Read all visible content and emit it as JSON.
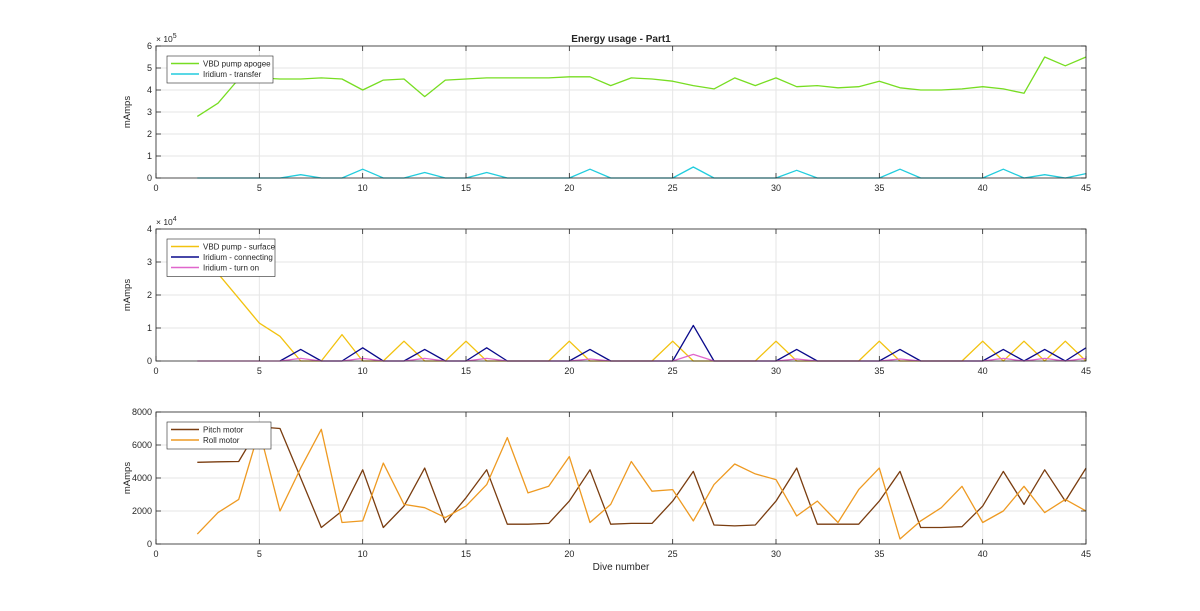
{
  "chart_data": [
    {
      "type": "line",
      "title": "Energy usage - Part1",
      "xlabel": "",
      "ylabel": "mAmps",
      "exponent_label": "× 10^5",
      "exponent_base": "× 10",
      "exponent_power": "5",
      "xlim": [
        0,
        45
      ],
      "ylim": [
        0,
        6
      ],
      "xticks": [
        0,
        5,
        10,
        15,
        20,
        25,
        30,
        35,
        40,
        45
      ],
      "yticks": [
        0,
        1,
        2,
        3,
        4,
        5,
        6
      ],
      "grid": true,
      "legend": "top-left",
      "series": [
        {
          "name": "VBD pump apogee",
          "color": "#77dd22",
          "x": [
            2,
            3,
            4,
            5,
            6,
            7,
            8,
            9,
            10,
            11,
            12,
            13,
            14,
            15,
            16,
            17,
            18,
            19,
            20,
            21,
            22,
            23,
            24,
            25,
            26,
            27,
            28,
            29,
            30,
            31,
            32,
            33,
            34,
            35,
            36,
            37,
            38,
            39,
            40,
            41,
            42,
            43,
            44,
            45
          ],
          "y": [
            2.8,
            3.4,
            4.5,
            4.55,
            4.5,
            4.5,
            4.55,
            4.5,
            4.0,
            4.45,
            4.5,
            3.7,
            4.45,
            4.5,
            4.55,
            4.55,
            4.55,
            4.55,
            4.6,
            4.6,
            4.2,
            4.55,
            4.5,
            4.4,
            4.2,
            4.05,
            4.55,
            4.2,
            4.55,
            4.15,
            4.2,
            4.1,
            4.15,
            4.4,
            4.1,
            4.0,
            4.0,
            4.05,
            4.15,
            4.05,
            3.85,
            5.5,
            5.1,
            5.5
          ]
        },
        {
          "name": "Iridium - transfer",
          "color": "#22ccdd",
          "x": [
            2,
            6,
            7,
            8,
            9,
            10,
            11,
            12,
            13,
            14,
            15,
            16,
            17,
            20,
            21,
            22,
            25,
            26,
            27,
            30,
            31,
            32,
            35,
            36,
            37,
            40,
            41,
            42,
            43,
            44,
            45
          ],
          "y": [
            0,
            0,
            0.15,
            0,
            0,
            0.4,
            0,
            0,
            0.25,
            0,
            0,
            0.25,
            0,
            0,
            0.4,
            0,
            0,
            0.5,
            0,
            0,
            0.35,
            0,
            0,
            0.4,
            0,
            0,
            0.4,
            0,
            0.15,
            0,
            0.2
          ]
        }
      ]
    },
    {
      "type": "line",
      "title": "",
      "xlabel": "",
      "ylabel": "mAmps",
      "exponent_label": "× 10^4",
      "exponent_base": "× 10",
      "exponent_power": "4",
      "xlim": [
        0,
        45
      ],
      "ylim": [
        0,
        4
      ],
      "xticks": [
        0,
        5,
        10,
        15,
        20,
        25,
        30,
        35,
        40,
        45
      ],
      "yticks": [
        0,
        1,
        2,
        3,
        4
      ],
      "grid": true,
      "legend": "top-left",
      "series": [
        {
          "name": "VBD pump - surface",
          "color": "#f2c20f",
          "x": [
            2,
            3,
            4,
            5,
            6,
            7,
            8,
            9,
            10,
            11,
            12,
            13,
            14,
            15,
            16,
            17,
            18,
            19,
            20,
            21,
            22,
            23,
            24,
            25,
            26,
            27,
            28,
            29,
            30,
            31,
            32,
            33,
            34,
            35,
            36,
            37,
            38,
            39,
            40,
            41,
            42,
            43,
            44,
            45
          ],
          "y": [
            3.1,
            2.65,
            1.9,
            1.15,
            0.75,
            0,
            0,
            0.8,
            0,
            0,
            0.6,
            0,
            0,
            0.6,
            0,
            0,
            0,
            0,
            0.6,
            0,
            0,
            0,
            0,
            0.6,
            0,
            0,
            0,
            0,
            0.6,
            0,
            0,
            0,
            0,
            0.6,
            0,
            0,
            0,
            0,
            0.6,
            0,
            0.6,
            0,
            0.6,
            0
          ]
        },
        {
          "name": "Iridium - connecting",
          "color": "#0a0a8c",
          "x": [
            6,
            7,
            8,
            9,
            10,
            11,
            12,
            13,
            14,
            15,
            16,
            17,
            20,
            21,
            22,
            25,
            26,
            27,
            30,
            31,
            32,
            35,
            36,
            37,
            40,
            41,
            42,
            43,
            44,
            45
          ],
          "y": [
            0,
            0.35,
            0,
            0,
            0.4,
            0,
            0,
            0.35,
            0,
            0,
            0.4,
            0,
            0,
            0.35,
            0,
            0,
            1.08,
            0,
            0,
            0.35,
            0,
            0,
            0.35,
            0,
            0,
            0.35,
            0,
            0.35,
            0,
            0.4
          ]
        },
        {
          "name": "Iridium - turn on",
          "color": "#e066cc",
          "x": [
            2,
            6,
            7,
            8,
            9,
            10,
            11,
            12,
            13,
            14,
            15,
            16,
            17,
            20,
            21,
            22,
            25,
            26,
            27,
            30,
            31,
            32,
            35,
            36,
            37,
            40,
            41,
            42,
            43,
            44,
            45
          ],
          "y": [
            0,
            0,
            0.08,
            0,
            0,
            0.08,
            0,
            0,
            0.08,
            0,
            0,
            0.08,
            0,
            0,
            0.06,
            0,
            0,
            0.2,
            0,
            0,
            0.06,
            0,
            0,
            0.06,
            0,
            0,
            0.08,
            0,
            0.08,
            0,
            0.08
          ]
        }
      ]
    },
    {
      "type": "line",
      "title": "",
      "xlabel": "Dive number",
      "ylabel": "mAmps",
      "xlim": [
        0,
        45
      ],
      "ylim": [
        0,
        8000
      ],
      "xticks": [
        0,
        5,
        10,
        15,
        20,
        25,
        30,
        35,
        40,
        45
      ],
      "yticks": [
        0,
        2000,
        4000,
        6000,
        8000
      ],
      "grid": true,
      "legend": "top-left",
      "series": [
        {
          "name": "Pitch motor",
          "color": "#7a3d10",
          "x": [
            2,
            3,
            4,
            5,
            6,
            7,
            8,
            9,
            10,
            11,
            12,
            13,
            14,
            15,
            16,
            17,
            18,
            19,
            20,
            21,
            22,
            23,
            24,
            25,
            26,
            27,
            28,
            29,
            30,
            31,
            32,
            33,
            34,
            35,
            36,
            37,
            38,
            39,
            40,
            41,
            42,
            43,
            44,
            45
          ],
          "y": [
            4950,
            4980,
            5000,
            7100,
            7000,
            4000,
            1000,
            2000,
            4500,
            1000,
            2300,
            4600,
            1300,
            2800,
            4500,
            1200,
            1200,
            1250,
            2600,
            4500,
            1200,
            1250,
            1250,
            2600,
            4400,
            1150,
            1100,
            1150,
            2600,
            4600,
            1200,
            1200,
            1200,
            2600,
            4400,
            1000,
            1000,
            1050,
            2300,
            4400,
            2400,
            4500,
            2600,
            4600
          ]
        },
        {
          "name": "Roll motor",
          "color": "#ee9a22",
          "x": [
            2,
            3,
            4,
            5,
            6,
            7,
            8,
            9,
            10,
            11,
            12,
            13,
            14,
            15,
            16,
            17,
            18,
            19,
            20,
            21,
            22,
            23,
            24,
            25,
            26,
            27,
            28,
            29,
            30,
            31,
            32,
            33,
            34,
            35,
            36,
            37,
            38,
            39,
            40,
            41,
            42,
            43,
            44,
            45
          ],
          "y": [
            600,
            1900,
            2700,
            6900,
            2000,
            4600,
            6950,
            1300,
            1400,
            4900,
            2400,
            2200,
            1600,
            2300,
            3600,
            6450,
            3100,
            3500,
            5300,
            1300,
            2400,
            5000,
            3200,
            3300,
            1400,
            3600,
            4850,
            4250,
            3900,
            1700,
            2600,
            1300,
            3300,
            4600,
            300,
            1400,
            2200,
            3500,
            1300,
            2000,
            3500,
            1900,
            2700,
            2000
          ]
        }
      ]
    }
  ]
}
